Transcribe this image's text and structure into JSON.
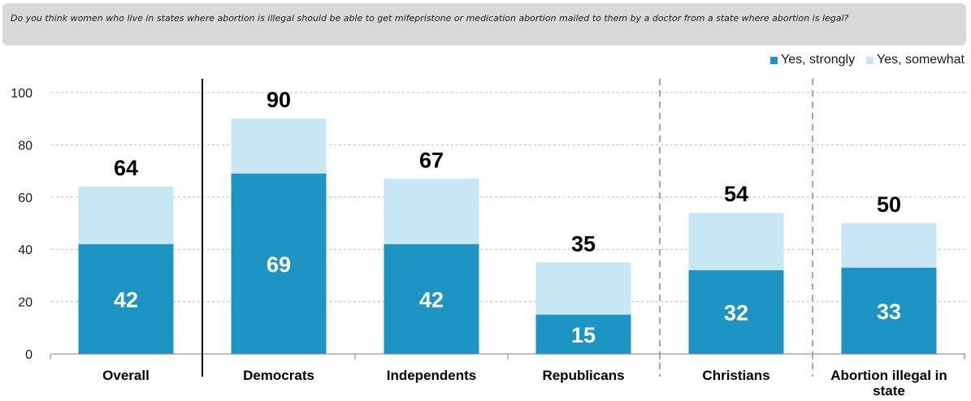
{
  "question": "Do you think women who live in states where abortion is illegal should be able to get mifepristone or medication abortion mailed to them by a doctor from a state where abortion is legal?",
  "colors": {
    "strongly": "#1c94c4",
    "somewhat": "#c7e7f5"
  },
  "chart_data": {
    "type": "bar",
    "stacked": true,
    "categories": [
      "Overall",
      "Democrats",
      "Independents",
      "Republicans",
      "Christians",
      "Abortion illegal in state"
    ],
    "series": [
      {
        "name": "Yes, strongly",
        "values": [
          42,
          69,
          42,
          15,
          32,
          33
        ]
      },
      {
        "name": "Yes, somewhat",
        "values": [
          22,
          21,
          25,
          20,
          22,
          17
        ]
      }
    ],
    "totals": [
      64,
      90,
      67,
      35,
      54,
      50
    ],
    "yticks": [
      0,
      20,
      40,
      60,
      80,
      100
    ],
    "ylim": [
      0,
      100
    ],
    "grid": true,
    "legend": "top-right",
    "title": "",
    "xlabel": "",
    "ylabel": ""
  }
}
